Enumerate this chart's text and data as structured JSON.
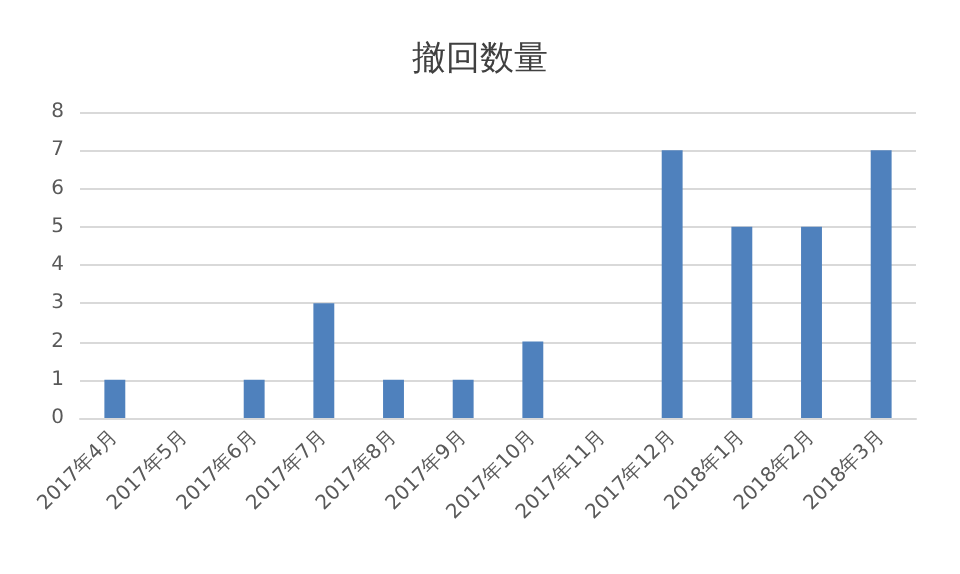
{
  "chart_data": {
    "type": "bar",
    "title": "撤回数量",
    "categories": [
      "2017年4月",
      "2017年5月",
      "2017年6月",
      "2017年7月",
      "2017年8月",
      "2017年9月",
      "2017年10月",
      "2017年11月",
      "2017年12月",
      "2018年1月",
      "2018年2月",
      "2018年3月"
    ],
    "values": [
      1,
      0,
      1,
      3,
      1,
      1,
      2,
      0,
      7,
      5,
      5,
      7
    ],
    "color": "#4f81bd",
    "ylim": [
      0,
      8
    ],
    "yticks": [
      0,
      1,
      2,
      3,
      4,
      5,
      6,
      7,
      8
    ],
    "grid": "y"
  }
}
